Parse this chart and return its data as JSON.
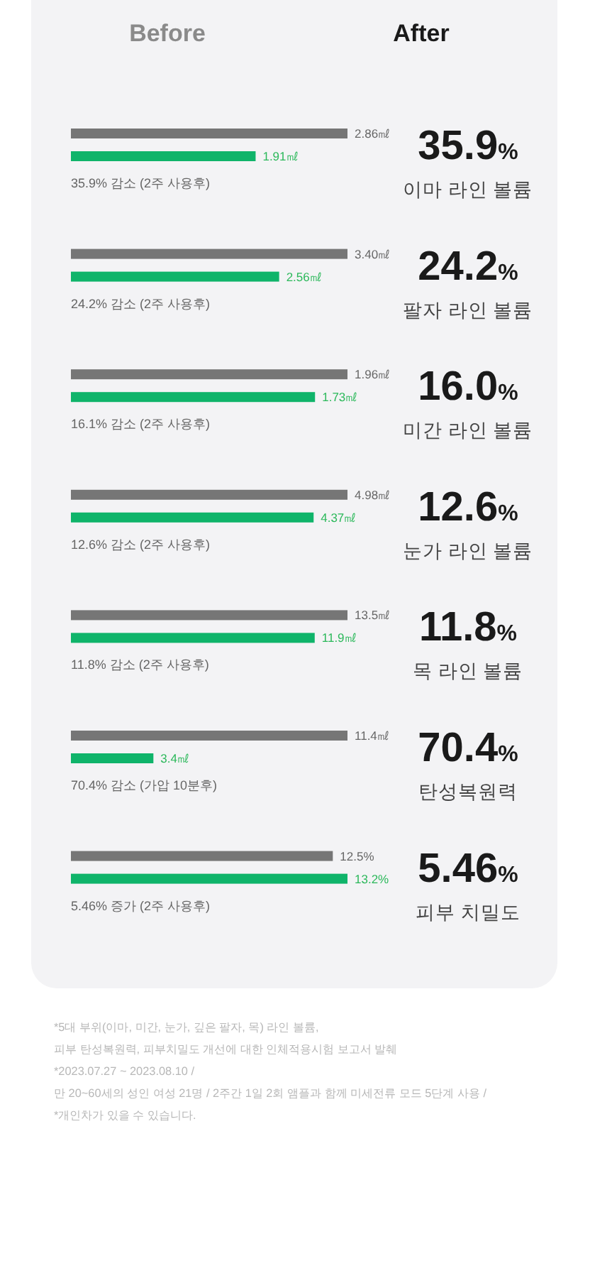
{
  "chart_data": [
    {
      "type": "other",
      "annotations": [
        "Before",
        "After"
      ]
    },
    {
      "type": "bar",
      "orientation": "horizontal",
      "categories": [
        null,
        null
      ],
      "values": [
        2.86,
        1.91
      ],
      "colors": [
        "#767676",
        "#0fb46a"
      ],
      "value_labels": [
        "2.86㎖",
        "1.91㎖"
      ],
      "annotations": [
        "35.9% 감소 (2주 사용후)",
        "35.9%",
        "이마 라인 볼륨"
      ]
    },
    {
      "type": "bar",
      "orientation": "horizontal",
      "categories": [
        null,
        null
      ],
      "values": [
        3.4,
        2.56
      ],
      "colors": [
        "#767676",
        "#0fb46a"
      ],
      "value_labels": [
        "3.40㎖",
        "2.56㎖"
      ],
      "annotations": [
        "24.2% 감소 (2주 사용후)",
        "24.2%",
        "팔자 라인 볼륨"
      ]
    },
    {
      "type": "bar",
      "orientation": "horizontal",
      "categories": [
        null,
        null
      ],
      "values": [
        1.96,
        1.73
      ],
      "colors": [
        "#767676",
        "#0fb46a"
      ],
      "value_labels": [
        "1.96㎖",
        "1.73㎖"
      ],
      "annotations": [
        "16.1% 감소 (2주 사용후)",
        "16.0%",
        "미간 라인 볼륨"
      ]
    },
    {
      "type": "bar",
      "orientation": "horizontal",
      "categories": [
        null,
        null
      ],
      "values": [
        4.98,
        4.37
      ],
      "colors": [
        "#767676",
        "#0fb46a"
      ],
      "value_labels": [
        "4.98㎖",
        "4.37㎖"
      ],
      "annotations": [
        "12.6% 감소 (2주 사용후)",
        "12.6%",
        "눈가 라인 볼륨"
      ]
    },
    {
      "type": "bar",
      "orientation": "horizontal",
      "categories": [
        null,
        null
      ],
      "values": [
        13.5,
        11.9
      ],
      "colors": [
        "#767676",
        "#0fb46a"
      ],
      "value_labels": [
        "13.5㎖",
        "11.9㎖"
      ],
      "annotations": [
        "11.8% 감소 (2주 사용후)",
        "11.8%",
        "목 라인 볼륨"
      ]
    },
    {
      "type": "bar",
      "orientation": "horizontal",
      "categories": [
        null,
        null
      ],
      "values": [
        11.4,
        3.4
      ],
      "colors": [
        "#767676",
        "#0fb46a"
      ],
      "value_labels": [
        "11.4㎖",
        "3.4㎖"
      ],
      "annotations": [
        "70.4% 감소 (가압 10분후)",
        "70.4%",
        "탄성복원력"
      ]
    },
    {
      "type": "bar",
      "orientation": "horizontal",
      "categories": [
        null,
        null
      ],
      "values": [
        12.5,
        13.2
      ],
      "colors": [
        "#767676",
        "#0fb46a"
      ],
      "value_labels": [
        "12.5%",
        "13.2%"
      ],
      "annotations": [
        "5.46% 증가 (2주 사용후)",
        "5.46%",
        "피부 치밀도"
      ]
    },
    {
      "type": "other",
      "annotations": [
        "*5대 부위(이마, 미간, 눈가, 깊은 팔자, 목) 라인 볼륨,",
        "피부 탄성복원력, 피부치밀도 개선에 대한 인체적용시험 보고서 발췌",
        "*2023.07.27 ~ 2023.08.10 /",
        "만 20~60세의 성인 여성 21명 / 2주간 1일 2회 앰플과 함께 미세전류 모드 5단계 사용 /",
        "*개인차가 있을 수 있습니다."
      ]
    }
  ]
}
